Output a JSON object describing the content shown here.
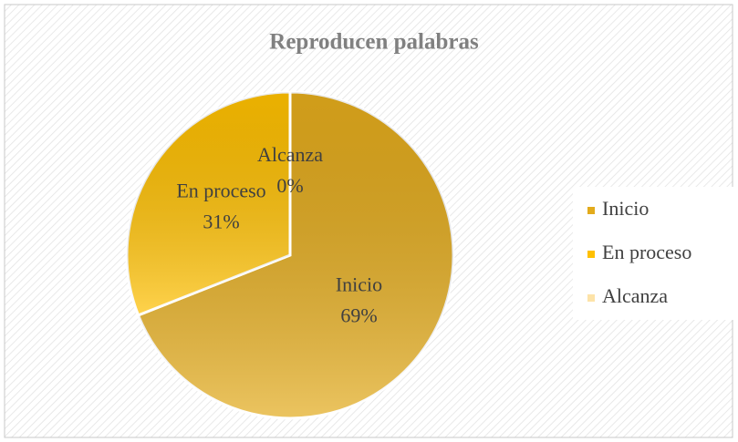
{
  "chart_data": {
    "type": "pie",
    "title": "Reproducen palabras",
    "categories": [
      "Inicio",
      "En proceso",
      "Alcanza"
    ],
    "values": [
      69,
      31,
      0
    ],
    "value_labels": [
      "69%",
      "31%",
      "0%"
    ],
    "colors": [
      "#e3ab1c",
      "#ffc000",
      "#fde3a8"
    ],
    "legend": "right"
  }
}
